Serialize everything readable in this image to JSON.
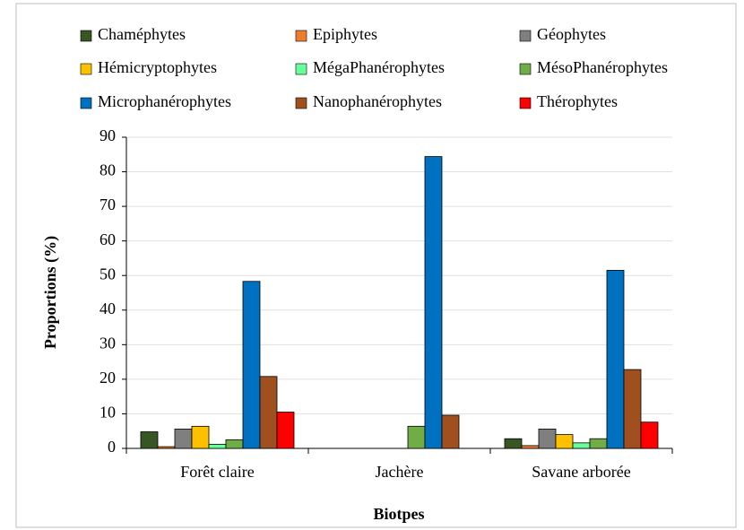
{
  "chart_data": {
    "type": "bar",
    "x_label": "Biotpes",
    "y_label": "Proportions  (%)",
    "categories": [
      "Forêt claire",
      "Jachère",
      "Savane arborée"
    ],
    "series": [
      {
        "name": "Chaméphytes",
        "color": "#375623",
        "values": [
          4.8,
          0,
          2.8
        ]
      },
      {
        "name": "Epiphytes",
        "color": "#ed7d31",
        "values": [
          0.5,
          0,
          0.8
        ]
      },
      {
        "name": "Géophytes",
        "color": "#7f7f7f",
        "values": [
          5.6,
          0,
          5.6
        ]
      },
      {
        "name": "Hémicryptophytes",
        "color": "#ffc000",
        "values": [
          6.4,
          0,
          4.0
        ]
      },
      {
        "name": "MégaPhanérophytes",
        "color": "#66ff99",
        "values": [
          1.2,
          0,
          1.6
        ]
      },
      {
        "name": "MésoPhanérophytes",
        "color": "#70ad47",
        "values": [
          2.5,
          6.4,
          2.8
        ]
      },
      {
        "name": "Microphanérophytes",
        "color": "#0070c0",
        "values": [
          48.3,
          84.4,
          51.5
        ]
      },
      {
        "name": "Nanophanérophytes",
        "color": "#a0501e",
        "values": [
          20.8,
          9.6,
          22.8
        ]
      },
      {
        "name": "Thérophytes",
        "color": "#ff0000",
        "values": [
          10.5,
          0,
          7.6
        ]
      }
    ],
    "ylim": [
      0,
      90
    ],
    "yticks": [
      0,
      10,
      20,
      30,
      40,
      50,
      60,
      70,
      80,
      90
    ],
    "grid": true,
    "legend": "top"
  }
}
